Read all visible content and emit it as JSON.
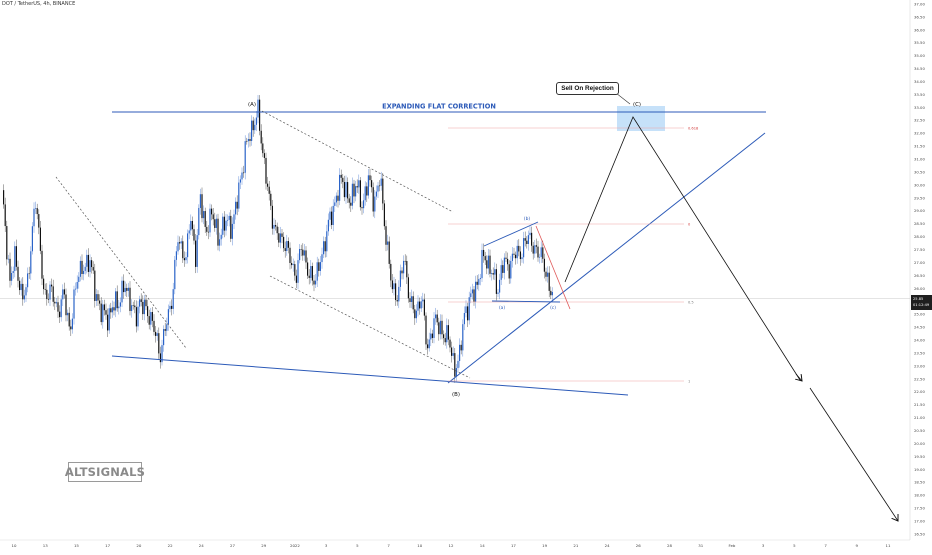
{
  "symbol_label": "DOT / TetherUS, 4h, BINANCE",
  "watermark": "ALTSIGNALS",
  "callout": "Sell On Rejection",
  "current_price": {
    "value": "25.85",
    "countdown": "01:12:49"
  },
  "colors": {
    "bull": "#2a63c8",
    "bear": "#111111",
    "trendline": "#2c5ab8",
    "fib": "#e06868",
    "target_zone": "#bcdcf8"
  },
  "chart_data": {
    "type": "candlestick",
    "ylim": [
      16.5,
      37.0
    ],
    "y_ticks": [
      "37.00",
      "36.50",
      "36.00",
      "35.50",
      "35.00",
      "34.50",
      "34.00",
      "33.50",
      "33.00",
      "32.50",
      "32.00",
      "31.50",
      "31.00",
      "30.50",
      "30.00",
      "29.50",
      "29.00",
      "28.50",
      "28.00",
      "27.50",
      "27.00",
      "26.50",
      "26.00",
      "25.50",
      "25.00",
      "24.50",
      "24.00",
      "23.50",
      "23.00",
      "22.50",
      "22.00",
      "21.50",
      "21.00",
      "20.50",
      "20.00",
      "19.50",
      "19.00",
      "18.50",
      "18.00",
      "17.50",
      "17.00",
      "16.50"
    ],
    "x_ticks": [
      "10",
      "13",
      "15",
      "17",
      "20",
      "22",
      "24",
      "27",
      "29",
      "2022",
      "3",
      "5",
      "7",
      "10",
      "12",
      "14",
      "17",
      "19",
      "21",
      "24",
      "26",
      "28",
      "31",
      "Feb",
      "3",
      "5",
      "7",
      "9",
      "11"
    ],
    "waypoints": [
      [
        29.8,
        2
      ],
      [
        26.2,
        10
      ],
      [
        27.3,
        15
      ],
      [
        25.5,
        22
      ],
      [
        26.4,
        28
      ],
      [
        29.6,
        36
      ],
      [
        25.6,
        44
      ],
      [
        26.0,
        50
      ],
      [
        25.1,
        58
      ],
      [
        25.8,
        64
      ],
      [
        24.3,
        70
      ],
      [
        26.7,
        78
      ],
      [
        26.7,
        84
      ],
      [
        27.2,
        90
      ],
      [
        25.8,
        95
      ],
      [
        25.1,
        102
      ],
      [
        24.8,
        108
      ],
      [
        25.3,
        112
      ],
      [
        25.4,
        118
      ],
      [
        26.1,
        124
      ],
      [
        25.6,
        130
      ],
      [
        24.8,
        136
      ],
      [
        25.6,
        140
      ],
      [
        25.1,
        146
      ],
      [
        24.8,
        152
      ],
      [
        23.4,
        160
      ],
      [
        24.6,
        166
      ],
      [
        25.6,
        172
      ],
      [
        28.0,
        178
      ],
      [
        27.0,
        186
      ],
      [
        29.0,
        190
      ],
      [
        27.0,
        196
      ],
      [
        29.8,
        200
      ],
      [
        28.0,
        206
      ],
      [
        29.1,
        212
      ],
      [
        27.8,
        218
      ],
      [
        28.6,
        224
      ],
      [
        28.4,
        232
      ],
      [
        29.6,
        238
      ],
      [
        31.5,
        246
      ],
      [
        32.2,
        252
      ],
      [
        32.8,
        258
      ],
      [
        30.9,
        264
      ],
      [
        29.2,
        270
      ],
      [
        28.1,
        276
      ],
      [
        27.8,
        284
      ],
      [
        27.2,
        290
      ],
      [
        26.4,
        296
      ],
      [
        27.8,
        302
      ],
      [
        26.5,
        308
      ],
      [
        26.4,
        316
      ],
      [
        27.3,
        322
      ],
      [
        28.4,
        328
      ],
      [
        29.2,
        334
      ],
      [
        30.3,
        342
      ],
      [
        29.2,
        350
      ],
      [
        30.2,
        356
      ],
      [
        29.1,
        362
      ],
      [
        30.3,
        368
      ],
      [
        29.3,
        374
      ],
      [
        30.3,
        380
      ],
      [
        28.0,
        386
      ],
      [
        26.0,
        392
      ],
      [
        25.7,
        398
      ],
      [
        27.3,
        404
      ],
      [
        25.4,
        410
      ],
      [
        25.1,
        416
      ],
      [
        25.6,
        422
      ],
      [
        23.6,
        428
      ],
      [
        25.0,
        436
      ],
      [
        24.1,
        442
      ],
      [
        24.3,
        448
      ],
      [
        22.8,
        454
      ],
      [
        23.5,
        460
      ],
      [
        24.9,
        464
      ],
      [
        25.6,
        470
      ],
      [
        26.0,
        476
      ],
      [
        27.3,
        484
      ],
      [
        26.6,
        492
      ],
      [
        26.0,
        498
      ],
      [
        27.1,
        504
      ],
      [
        26.8,
        510
      ],
      [
        27.5,
        516
      ],
      [
        27.3,
        522
      ],
      [
        28.2,
        528
      ],
      [
        27.4,
        534
      ],
      [
        27.5,
        540
      ],
      [
        26.5,
        546
      ],
      [
        25.6,
        554
      ]
    ],
    "annotations": {
      "title": "EXPANDING FLAT CORRECTION",
      "wave_labels": [
        "(A)",
        "(B)",
        "(C)",
        "(a)",
        "(b)",
        "(c)"
      ],
      "fib_labels": [
        "0.618",
        "0",
        "0.5",
        "1"
      ]
    }
  }
}
